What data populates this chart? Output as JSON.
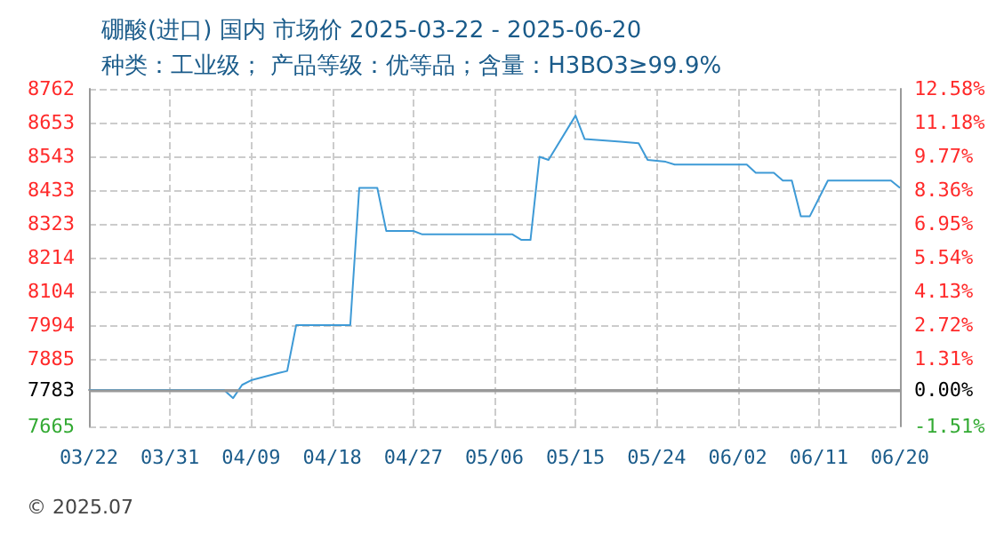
{
  "chart_data": {
    "type": "line",
    "title": "硼酸(进口) 国内 市场价 2025-03-22 - 2025-06-20",
    "subtitle": "种类：工业级； 产品等级：优等品；含量：H3BO3≥99.9%",
    "annotations": [
      "© 2025.07"
    ],
    "x": [
      "2025-03-22",
      "2025-04-06",
      "2025-04-07",
      "2025-04-08",
      "2025-04-09",
      "2025-04-12",
      "2025-04-13",
      "2025-04-14",
      "2025-04-20",
      "2025-04-21",
      "2025-04-23",
      "2025-04-24",
      "2025-04-27",
      "2025-04-28",
      "2025-05-08",
      "2025-05-09",
      "2025-05-10",
      "2025-05-11",
      "2025-05-12",
      "2025-05-15",
      "2025-05-16",
      "2025-05-20",
      "2025-05-22",
      "2025-05-23",
      "2025-05-25",
      "2025-05-26",
      "2025-06-03",
      "2025-06-04",
      "2025-06-06",
      "2025-06-07",
      "2025-06-08",
      "2025-06-09",
      "2025-06-10",
      "2025-06-12",
      "2025-06-19",
      "2025-06-20"
    ],
    "series": [
      {
        "color": "#3e9ad6",
        "values": [
          7783,
          7783,
          7757,
          7800,
          7815,
          7838,
          7845,
          7994,
          7994,
          8440,
          8440,
          8300,
          8300,
          8289,
          8289,
          8271,
          8271,
          8541,
          8531,
          8675,
          8599,
          8590,
          8585,
          8531,
          8525,
          8516,
          8516,
          8489,
          8489,
          8464,
          8464,
          8348,
          8348,
          8464,
          8464,
          8440
        ]
      }
    ],
    "xlim": [
      "2025-03-22",
      "2025-06-20"
    ],
    "xticks": [
      {
        "value": "2025-03-22",
        "label": "03/22"
      },
      {
        "value": "2025-03-31",
        "label": "03/31"
      },
      {
        "value": "2025-04-09",
        "label": "04/09"
      },
      {
        "value": "2025-04-18",
        "label": "04/18"
      },
      {
        "value": "2025-04-27",
        "label": "04/27"
      },
      {
        "value": "2025-05-06",
        "label": "05/06"
      },
      {
        "value": "2025-05-15",
        "label": "05/15"
      },
      {
        "value": "2025-05-24",
        "label": "05/24"
      },
      {
        "value": "2025-06-02",
        "label": "06/02"
      },
      {
        "value": "2025-06-11",
        "label": "06/11"
      },
      {
        "value": "2025-06-20",
        "label": "06/20"
      }
    ],
    "ylim": [
      7665,
      8762
    ],
    "yticks": [
      7665,
      7783,
      7885,
      7994,
      8104,
      8214,
      8323,
      8433,
      8543,
      8653,
      8762
    ],
    "y2lim": [
      -1.51,
      12.58
    ],
    "y2ticks": [
      {
        "value": -1.51,
        "label": "-1.51%"
      },
      {
        "value": 0,
        "label": "0.00%"
      },
      {
        "value": 1.31,
        "label": "1.31%"
      },
      {
        "value": 2.72,
        "label": "2.72%"
      },
      {
        "value": 4.13,
        "label": "4.13%"
      },
      {
        "value": 5.54,
        "label": "5.54%"
      },
      {
        "value": 6.95,
        "label": "6.95%"
      },
      {
        "value": 8.36,
        "label": "8.36%"
      },
      {
        "value": 9.77,
        "label": "9.77%"
      },
      {
        "value": 11.18,
        "label": "11.18%"
      },
      {
        "value": 12.58,
        "label": "12.58%"
      }
    ],
    "ref_lines": [
      {
        "axis": "y",
        "value": 7783,
        "color": "#999999"
      }
    ],
    "grid": true,
    "marker": "none",
    "line_style": "solid"
  }
}
